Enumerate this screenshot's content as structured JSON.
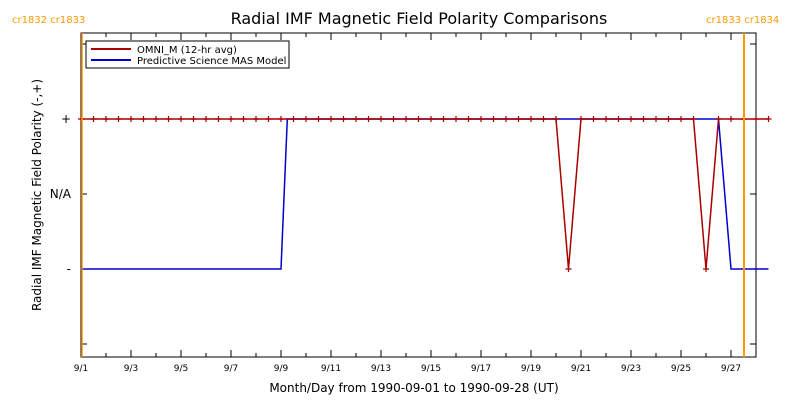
{
  "chart_data": {
    "type": "line",
    "title": "Radial IMF Magnetic Field Polarity Comparisons",
    "xlabel": "Month/Day from 1990-09-01 to 1990-09-28 (UT)",
    "ylabel": "Radial IMF Magnetic Field Polarity (-,+)",
    "x_range": [
      "1990-09-01",
      "1990-09-28"
    ],
    "x_tick_labels": [
      "9/1",
      "9/3",
      "9/5",
      "9/7",
      "9/9",
      "9/11",
      "9/13",
      "9/15",
      "9/17",
      "9/19",
      "9/21",
      "9/23",
      "9/25",
      "9/27"
    ],
    "y_levels": [
      "-",
      "N/A",
      "+"
    ],
    "carrington_markers": [
      {
        "label": "cr1832 cr1833",
        "date": "1990-09-01"
      },
      {
        "label": "cr1833 cr1834",
        "date": "1990-09-28"
      }
    ],
    "legend_position": "top-left",
    "series": [
      {
        "name": "OMNI_M (12-hr avg)",
        "color": "#aa0000",
        "marker": "+",
        "points": [
          [
            "1990-09-01 00:00",
            "+"
          ],
          [
            "1990-09-01 12:00",
            "+"
          ],
          [
            "1990-09-02 00:00",
            "+"
          ],
          [
            "1990-09-02 12:00",
            "+"
          ],
          [
            "1990-09-03 00:00",
            "+"
          ],
          [
            "1990-09-03 12:00",
            "+"
          ],
          [
            "1990-09-04 00:00",
            "+"
          ],
          [
            "1990-09-04 12:00",
            "+"
          ],
          [
            "1990-09-05 00:00",
            "+"
          ],
          [
            "1990-09-05 12:00",
            "+"
          ],
          [
            "1990-09-06 00:00",
            "+"
          ],
          [
            "1990-09-06 12:00",
            "+"
          ],
          [
            "1990-09-07 00:00",
            "+"
          ],
          [
            "1990-09-07 12:00",
            "+"
          ],
          [
            "1990-09-08 00:00",
            "+"
          ],
          [
            "1990-09-08 12:00",
            "+"
          ],
          [
            "1990-09-09 00:00",
            "+"
          ],
          [
            "1990-09-09 12:00",
            "+"
          ],
          [
            "1990-09-10 00:00",
            "+"
          ],
          [
            "1990-09-10 12:00",
            "+"
          ],
          [
            "1990-09-11 00:00",
            "+"
          ],
          [
            "1990-09-11 12:00",
            "+"
          ],
          [
            "1990-09-12 00:00",
            "+"
          ],
          [
            "1990-09-12 12:00",
            "+"
          ],
          [
            "1990-09-13 00:00",
            "+"
          ],
          [
            "1990-09-13 12:00",
            "+"
          ],
          [
            "1990-09-14 00:00",
            "+"
          ],
          [
            "1990-09-14 12:00",
            "+"
          ],
          [
            "1990-09-15 00:00",
            "+"
          ],
          [
            "1990-09-15 12:00",
            "+"
          ],
          [
            "1990-09-16 00:00",
            "+"
          ],
          [
            "1990-09-16 12:00",
            "+"
          ],
          [
            "1990-09-17 00:00",
            "+"
          ],
          [
            "1990-09-17 12:00",
            "+"
          ],
          [
            "1990-09-18 00:00",
            "+"
          ],
          [
            "1990-09-18 12:00",
            "+"
          ],
          [
            "1990-09-19 00:00",
            "+"
          ],
          [
            "1990-09-19 12:00",
            "+"
          ],
          [
            "1990-09-20 00:00",
            "+"
          ],
          [
            "1990-09-20 12:00",
            "-"
          ],
          [
            "1990-09-21 00:00",
            "+"
          ],
          [
            "1990-09-21 12:00",
            "+"
          ],
          [
            "1990-09-22 00:00",
            "+"
          ],
          [
            "1990-09-22 12:00",
            "+"
          ],
          [
            "1990-09-23 00:00",
            "+"
          ],
          [
            "1990-09-23 12:00",
            "+"
          ],
          [
            "1990-09-24 00:00",
            "+"
          ],
          [
            "1990-09-24 12:00",
            "+"
          ],
          [
            "1990-09-25 00:00",
            "+"
          ],
          [
            "1990-09-25 12:00",
            "+"
          ],
          [
            "1990-09-26 00:00",
            "-"
          ],
          [
            "1990-09-26 12:00",
            "+"
          ],
          [
            "1990-09-27 00:00",
            "+"
          ],
          [
            "1990-09-27 12:00",
            "+"
          ],
          [
            "1990-09-28 00:00",
            "+"
          ],
          [
            "1990-09-28 12:00",
            "+"
          ]
        ]
      },
      {
        "name": "Predictive Science MAS Model",
        "color": "#0000cc",
        "marker": "",
        "points": [
          [
            "1990-09-01 00:00",
            "-"
          ],
          [
            "1990-09-09 00:00",
            "-"
          ],
          [
            "1990-09-09 06:00",
            "+"
          ],
          [
            "1990-09-26 12:00",
            "+"
          ],
          [
            "1990-09-27 00:00",
            "-"
          ],
          [
            "1990-09-28 12:00",
            "-"
          ]
        ]
      }
    ]
  }
}
